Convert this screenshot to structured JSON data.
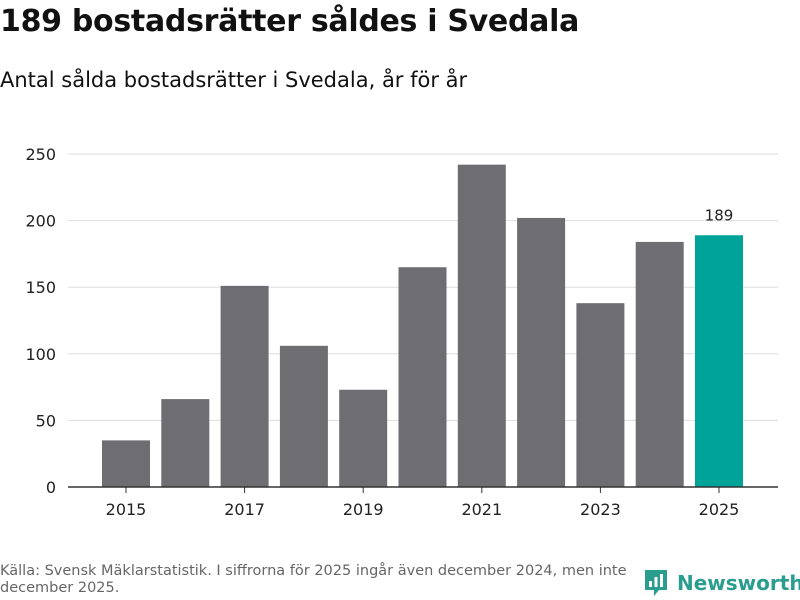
{
  "header": {
    "title": "189 bostadsrätter såldes i Svedala",
    "subtitle": "Antal sålda bostadsrätter i Svedala, år för år"
  },
  "footer": {
    "source": "Källa: Svensk Mäklarstatistik. I siffrorna för 2025 ingår även december 2024, men inte december 2025.",
    "brand": "Newsworthy"
  },
  "colors": {
    "bar": "#6e6d72",
    "highlight": "#00a398",
    "grid": "#dddddd",
    "axis": "#333333",
    "brand": "#2a9d8f"
  },
  "chart_data": {
    "type": "bar",
    "title": "189 bostadsrätter såldes i Svedala",
    "subtitle": "Antal sålda bostadsrätter i Svedala, år för år",
    "xlabel": "",
    "ylabel": "",
    "categories": [
      "2015",
      "2016",
      "2017",
      "2018",
      "2019",
      "2020",
      "2021",
      "2022",
      "2023",
      "2024",
      "2025"
    ],
    "values": [
      35,
      66,
      151,
      106,
      73,
      165,
      242,
      202,
      138,
      184,
      189
    ],
    "highlight_category": "2025",
    "data_labels": [
      {
        "category": "2025",
        "text": "189"
      }
    ],
    "x_tick_labels": [
      "2015",
      "2017",
      "2019",
      "2021",
      "2023",
      "2025"
    ],
    "y_ticks": [
      0,
      50,
      100,
      150,
      200,
      250
    ],
    "ylim": [
      0,
      250
    ],
    "grid": true
  }
}
